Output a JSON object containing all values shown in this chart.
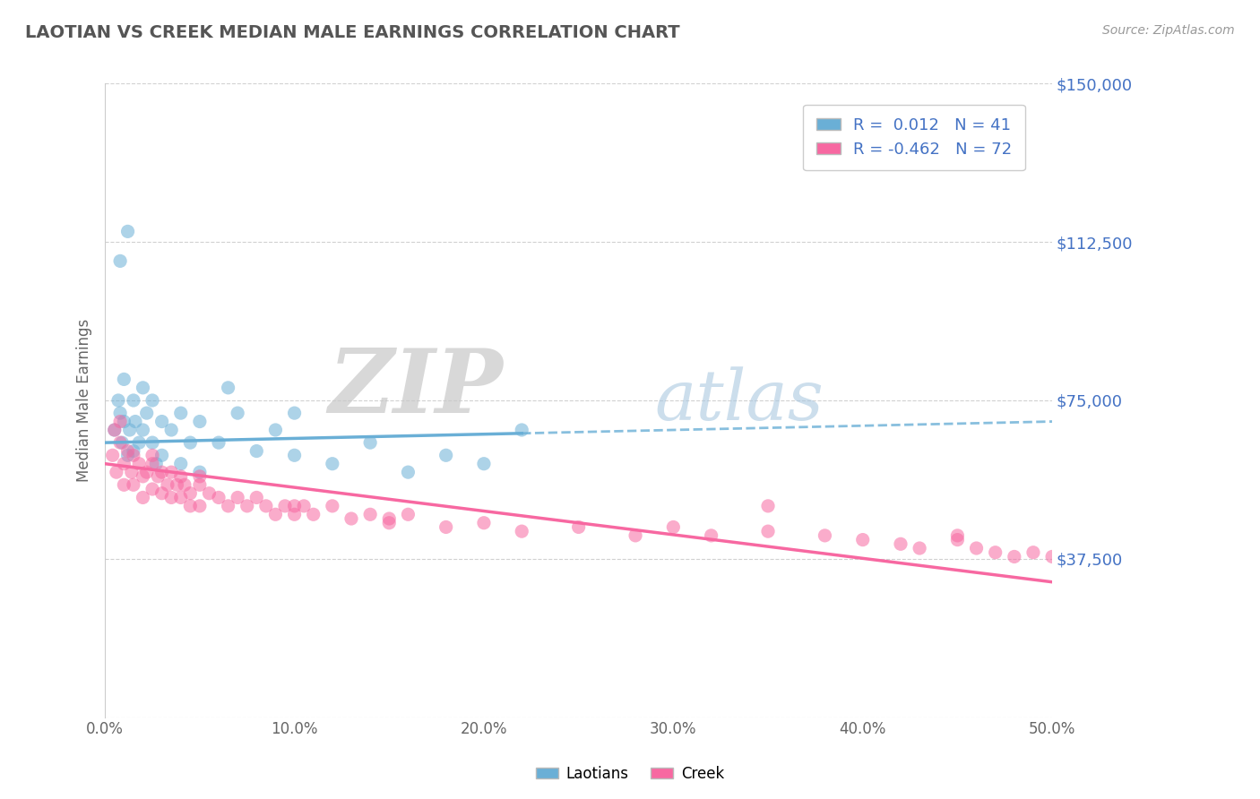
{
  "title": "LAOTIAN VS CREEK MEDIAN MALE EARNINGS CORRELATION CHART",
  "source": "Source: ZipAtlas.com",
  "ylabel": "Median Male Earnings",
  "xlim": [
    0.0,
    0.5
  ],
  "ylim": [
    0,
    150000
  ],
  "yticks": [
    0,
    37500,
    75000,
    112500,
    150000
  ],
  "ytick_labels": [
    "",
    "$37,500",
    "$75,000",
    "$112,500",
    "$150,000"
  ],
  "xticks": [
    0.0,
    0.1,
    0.2,
    0.3,
    0.4,
    0.5
  ],
  "xtick_labels": [
    "0.0%",
    "10.0%",
    "20.0%",
    "30.0%",
    "40.0%",
    "50.0%"
  ],
  "blue_color": "#6aafd6",
  "pink_color": "#f768a1",
  "blue_R": 0.012,
  "blue_N": 41,
  "pink_R": -0.462,
  "pink_N": 72,
  "blue_line_start": 0.0,
  "blue_line_solid_end": 0.22,
  "blue_line_end": 0.5,
  "blue_line_y0": 65000,
  "blue_line_y1": 70000,
  "pink_line_y0": 60000,
  "pink_line_y1": 32000,
  "laotian_x": [
    0.005,
    0.007,
    0.008,
    0.009,
    0.01,
    0.01,
    0.012,
    0.013,
    0.015,
    0.015,
    0.016,
    0.018,
    0.02,
    0.02,
    0.022,
    0.025,
    0.025,
    0.027,
    0.03,
    0.03,
    0.035,
    0.04,
    0.04,
    0.045,
    0.05,
    0.05,
    0.06,
    0.065,
    0.07,
    0.08,
    0.09,
    0.1,
    0.1,
    0.12,
    0.14,
    0.16,
    0.18,
    0.2,
    0.22,
    0.008,
    0.012
  ],
  "laotian_y": [
    68000,
    75000,
    72000,
    65000,
    80000,
    70000,
    62000,
    68000,
    75000,
    63000,
    70000,
    65000,
    78000,
    68000,
    72000,
    75000,
    65000,
    60000,
    70000,
    62000,
    68000,
    72000,
    60000,
    65000,
    70000,
    58000,
    65000,
    78000,
    72000,
    63000,
    68000,
    62000,
    72000,
    60000,
    65000,
    58000,
    62000,
    60000,
    68000,
    108000,
    115000
  ],
  "creek_x": [
    0.004,
    0.006,
    0.008,
    0.01,
    0.01,
    0.012,
    0.014,
    0.015,
    0.015,
    0.018,
    0.02,
    0.02,
    0.022,
    0.025,
    0.025,
    0.028,
    0.03,
    0.03,
    0.033,
    0.035,
    0.035,
    0.038,
    0.04,
    0.04,
    0.042,
    0.045,
    0.045,
    0.05,
    0.05,
    0.055,
    0.06,
    0.065,
    0.07,
    0.075,
    0.08,
    0.085,
    0.09,
    0.095,
    0.1,
    0.105,
    0.11,
    0.12,
    0.13,
    0.14,
    0.15,
    0.16,
    0.18,
    0.2,
    0.22,
    0.25,
    0.28,
    0.3,
    0.32,
    0.35,
    0.38,
    0.4,
    0.42,
    0.43,
    0.45,
    0.46,
    0.47,
    0.48,
    0.49,
    0.5,
    0.005,
    0.008,
    0.025,
    0.05,
    0.1,
    0.15,
    0.35,
    0.45
  ],
  "creek_y": [
    62000,
    58000,
    65000,
    60000,
    55000,
    63000,
    58000,
    62000,
    55000,
    60000,
    57000,
    52000,
    58000,
    60000,
    54000,
    57000,
    58000,
    53000,
    55000,
    58000,
    52000,
    55000,
    57000,
    52000,
    55000,
    53000,
    50000,
    55000,
    50000,
    53000,
    52000,
    50000,
    52000,
    50000,
    52000,
    50000,
    48000,
    50000,
    48000,
    50000,
    48000,
    50000,
    47000,
    48000,
    46000,
    48000,
    45000,
    46000,
    44000,
    45000,
    43000,
    45000,
    43000,
    44000,
    43000,
    42000,
    41000,
    40000,
    42000,
    40000,
    39000,
    38000,
    39000,
    38000,
    68000,
    70000,
    62000,
    57000,
    50000,
    47000,
    50000,
    43000
  ]
}
